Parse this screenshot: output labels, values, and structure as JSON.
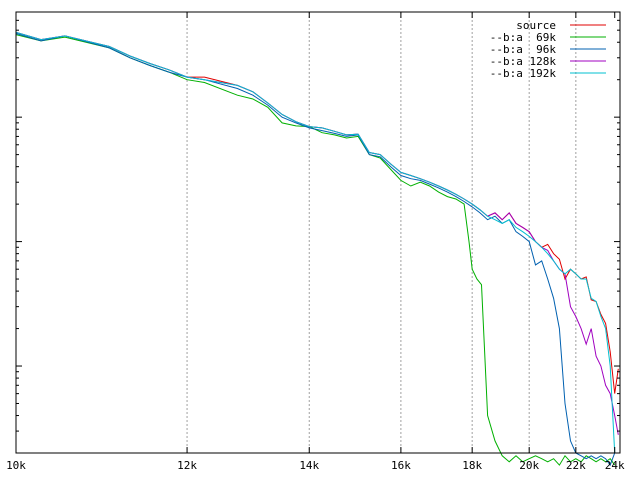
{
  "chart_data": {
    "type": "line",
    "title": "",
    "xlabel": "",
    "ylabel": "",
    "x_scale": "reciprocal",
    "y_scale": "log",
    "xlim": [
      10000,
      24300
    ],
    "ylim": [
      0.002,
      7
    ],
    "grid": "vertical dashed lines at x tick positions",
    "legend_position": "top-right",
    "x_ticks": [
      {
        "value": 10000,
        "label": "10k"
      },
      {
        "value": 12000,
        "label": "12k"
      },
      {
        "value": 14000,
        "label": "14k"
      },
      {
        "value": 16000,
        "label": "16k"
      },
      {
        "value": 18000,
        "label": "18k"
      },
      {
        "value": 20000,
        "label": "20k"
      },
      {
        "value": 22000,
        "label": "22k"
      },
      {
        "value": 24000,
        "label": "24k"
      }
    ],
    "y_tick_values": [
      0.01,
      0.1,
      1
    ],
    "series": [
      {
        "name": "source",
        "legend_label": "source",
        "color": "#e00000",
        "x": [
          10000,
          10250,
          10500,
          11000,
          11250,
          11500,
          11750,
          12000,
          12250,
          12750,
          13000,
          13250,
          13500,
          13750,
          14000,
          14250,
          14500,
          14750,
          15000,
          15250,
          15500,
          15750,
          16000,
          16250,
          16500,
          16750,
          17000,
          17250,
          17500,
          17750,
          18000,
          18250,
          18500,
          18750,
          19000,
          19250,
          19500,
          19750,
          20000,
          20250,
          20500,
          20750,
          21000,
          21250,
          21500,
          21750,
          22000,
          22250,
          22500,
          22750,
          23000,
          23250,
          23500,
          23750,
          24000,
          24200
        ],
        "y": [
          4.8,
          4.2,
          4.5,
          3.7,
          3.1,
          2.7,
          2.4,
          2.1,
          2.1,
          1.8,
          1.6,
          1.3,
          1.05,
          0.92,
          0.84,
          0.82,
          0.77,
          0.72,
          0.73,
          0.52,
          0.5,
          0.42,
          0.36,
          0.34,
          0.32,
          0.3,
          0.28,
          0.26,
          0.24,
          0.22,
          0.2,
          0.18,
          0.16,
          0.17,
          0.15,
          0.17,
          0.14,
          0.13,
          0.12,
          0.1,
          0.09,
          0.095,
          0.08,
          0.072,
          0.05,
          0.06,
          0.055,
          0.05,
          0.052,
          0.034,
          0.033,
          0.026,
          0.022,
          0.013,
          0.006,
          0.0095
        ]
      },
      {
        "name": "--b:a  69k",
        "legend_label": "--b:a  69k",
        "color": "#00b000",
        "x": [
          10000,
          10250,
          10500,
          11000,
          11250,
          11500,
          11750,
          12000,
          12250,
          12750,
          13000,
          13250,
          13500,
          13750,
          14000,
          14250,
          14500,
          14750,
          15000,
          15250,
          15500,
          15750,
          16000,
          16250,
          16500,
          16750,
          17000,
          17250,
          17500,
          17750,
          17900,
          18000,
          18150,
          18300,
          18500,
          18750,
          19000,
          19250,
          19500,
          19750,
          20000,
          20250,
          20500,
          20750,
          21000,
          21250,
          21500,
          21750,
          22000,
          22250,
          22500,
          22750,
          23000,
          23250,
          23500,
          23750,
          24000
        ],
        "y": [
          4.6,
          4.1,
          4.4,
          3.6,
          3.0,
          2.6,
          2.3,
          2.0,
          1.9,
          1.5,
          1.4,
          1.2,
          0.9,
          0.85,
          0.84,
          0.75,
          0.72,
          0.68,
          0.7,
          0.5,
          0.47,
          0.38,
          0.31,
          0.28,
          0.3,
          0.28,
          0.25,
          0.23,
          0.22,
          0.2,
          0.1,
          0.06,
          0.05,
          0.045,
          0.004,
          0.0025,
          0.0019,
          0.0017,
          0.0019,
          0.0017,
          0.0018,
          0.0019,
          0.0018,
          0.0017,
          0.0018,
          0.0016,
          0.0019,
          0.0017,
          0.0018,
          0.0017,
          0.0019,
          0.0018,
          0.0017,
          0.0018,
          0.0017,
          0.0018,
          0.0016
        ]
      },
      {
        "name": "--b:a  96k",
        "legend_label": "--b:a  96k",
        "color": "#0060b0",
        "x": [
          10000,
          10250,
          10500,
          11000,
          11250,
          11500,
          11750,
          12000,
          12250,
          12750,
          13000,
          13250,
          13500,
          13750,
          14000,
          14250,
          14500,
          14750,
          15000,
          15250,
          15500,
          15750,
          16000,
          16250,
          16500,
          16750,
          17000,
          17250,
          17500,
          17750,
          18000,
          18250,
          18500,
          18750,
          19000,
          19250,
          19500,
          19750,
          20000,
          20250,
          20500,
          20750,
          21000,
          21250,
          21500,
          21750,
          22000,
          22250,
          22500,
          22750,
          23000,
          23250,
          23500,
          23750,
          24000
        ],
        "y": [
          4.7,
          4.1,
          4.5,
          3.6,
          3.0,
          2.6,
          2.3,
          2.1,
          2.0,
          1.7,
          1.5,
          1.25,
          1.0,
          0.9,
          0.82,
          0.78,
          0.74,
          0.7,
          0.72,
          0.5,
          0.48,
          0.4,
          0.34,
          0.32,
          0.31,
          0.29,
          0.27,
          0.25,
          0.23,
          0.21,
          0.19,
          0.17,
          0.15,
          0.16,
          0.14,
          0.15,
          0.12,
          0.11,
          0.1,
          0.065,
          0.07,
          0.05,
          0.035,
          0.02,
          0.005,
          0.0025,
          0.002,
          0.0019,
          0.0018,
          0.0019,
          0.0018,
          0.0019,
          0.0018,
          0.0016,
          0.002
        ]
      },
      {
        "name": "--b:a 128k",
        "legend_label": "--b:a 128k",
        "color": "#a000c0",
        "x": [
          10000,
          10250,
          10500,
          11000,
          11250,
          11500,
          11750,
          12000,
          12250,
          12750,
          13000,
          13250,
          13500,
          13750,
          14000,
          14250,
          14500,
          14750,
          15000,
          15250,
          15500,
          15750,
          16000,
          16250,
          16500,
          16750,
          17000,
          17250,
          17500,
          17750,
          18000,
          18250,
          18500,
          18750,
          19000,
          19250,
          19500,
          19750,
          20000,
          20250,
          20500,
          20750,
          21000,
          21250,
          21500,
          21750,
          22000,
          22250,
          22500,
          22750,
          23000,
          23250,
          23500,
          23750,
          24000,
          24200
        ],
        "y": [
          4.8,
          4.2,
          4.5,
          3.7,
          3.1,
          2.7,
          2.4,
          2.1,
          2.0,
          1.8,
          1.6,
          1.3,
          1.05,
          0.92,
          0.84,
          0.82,
          0.77,
          0.72,
          0.73,
          0.52,
          0.5,
          0.42,
          0.36,
          0.34,
          0.32,
          0.3,
          0.28,
          0.26,
          0.24,
          0.22,
          0.2,
          0.18,
          0.16,
          0.17,
          0.15,
          0.17,
          0.14,
          0.13,
          0.12,
          0.1,
          0.09,
          0.085,
          0.07,
          0.06,
          0.055,
          0.03,
          0.025,
          0.02,
          0.015,
          0.02,
          0.012,
          0.01,
          0.007,
          0.006,
          0.004,
          0.0028
        ]
      },
      {
        "name": "--b:a 192k",
        "legend_label": "--b:a 192k",
        "color": "#00c0d0",
        "x": [
          10000,
          10250,
          10500,
          11000,
          11250,
          11500,
          11750,
          12000,
          12250,
          12750,
          13000,
          13250,
          13500,
          13750,
          14000,
          14250,
          14500,
          14750,
          15000,
          15250,
          15500,
          15750,
          16000,
          16250,
          16500,
          16750,
          17000,
          17250,
          17500,
          17750,
          18000,
          18250,
          18500,
          18750,
          19000,
          19250,
          19500,
          19750,
          20000,
          20250,
          20500,
          20750,
          21000,
          21250,
          21500,
          21750,
          22000,
          22250,
          22500,
          22750,
          23000,
          23250,
          23500,
          23750,
          24000
        ],
        "y": [
          4.8,
          4.2,
          4.5,
          3.7,
          3.1,
          2.7,
          2.4,
          2.1,
          2.0,
          1.8,
          1.6,
          1.3,
          1.05,
          0.92,
          0.84,
          0.82,
          0.77,
          0.72,
          0.73,
          0.52,
          0.5,
          0.42,
          0.36,
          0.34,
          0.32,
          0.3,
          0.28,
          0.26,
          0.24,
          0.22,
          0.2,
          0.18,
          0.16,
          0.15,
          0.14,
          0.15,
          0.13,
          0.12,
          0.11,
          0.1,
          0.09,
          0.08,
          0.07,
          0.06,
          0.055,
          0.06,
          0.055,
          0.05,
          0.05,
          0.035,
          0.033,
          0.025,
          0.02,
          0.01,
          0.002
        ]
      }
    ]
  }
}
